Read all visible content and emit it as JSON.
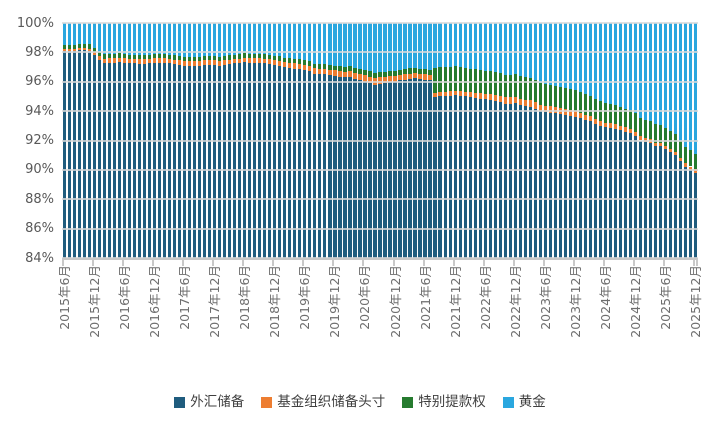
{
  "chart_data": {
    "type": "bar",
    "subtype": "stacked-100-percent-columns",
    "title": "",
    "x_axis": {
      "frequency": "monthly",
      "start": "2015-06",
      "end": "2025-12",
      "n_bars": 127,
      "tick_labels": [
        "2015年6月",
        "2015年12月",
        "2016年6月",
        "2016年12月",
        "2017年6月",
        "2017年12月",
        "2018年6月",
        "2018年12月",
        "2019年6月",
        "2019年12月",
        "2020年6月",
        "2020年12月",
        "2021年6月",
        "2021年12月",
        "2022年6月",
        "2022年12月",
        "2023年6月",
        "2023年12月",
        "2024年6月",
        "2024年12月",
        "2025年6月",
        "2025年12月"
      ],
      "tick_every_n_bars": 6
    },
    "y_axis": {
      "tick_labels": [
        "100%",
        "98%",
        "96%",
        "94%",
        "92%",
        "90%",
        "88%",
        "86%",
        "84%"
      ],
      "ylim": [
        84,
        100
      ],
      "unit": "%"
    },
    "grid": true,
    "legend_position": "bottom",
    "series": [
      {
        "name": "外汇储备",
        "color": "#1F5C7E",
        "values": [
          98.1,
          98.1,
          98.1,
          98.15,
          98.15,
          98.1,
          97.8,
          97.5,
          97.3,
          97.3,
          97.3,
          97.35,
          97.3,
          97.25,
          97.25,
          97.2,
          97.2,
          97.25,
          97.3,
          97.3,
          97.3,
          97.25,
          97.2,
          97.15,
          97.1,
          97.1,
          97.1,
          97.1,
          97.15,
          97.15,
          97.15,
          97.1,
          97.15,
          97.2,
          97.25,
          97.3,
          97.35,
          97.3,
          97.3,
          97.3,
          97.25,
          97.2,
          97.15,
          97.1,
          97.0,
          96.95,
          96.9,
          96.85,
          96.8,
          96.7,
          96.55,
          96.5,
          96.5,
          96.45,
          96.4,
          96.35,
          96.3,
          96.3,
          96.2,
          96.1,
          96.0,
          95.9,
          95.8,
          95.85,
          95.9,
          95.95,
          96.0,
          96.1,
          96.15,
          96.2,
          96.25,
          96.2,
          96.15,
          96.1,
          94.95,
          95.0,
          95.0,
          95.05,
          95.1,
          95.05,
          95.0,
          94.95,
          94.9,
          94.85,
          94.8,
          94.75,
          94.7,
          94.6,
          94.5,
          94.5,
          94.55,
          94.4,
          94.35,
          94.3,
          94.15,
          94.0,
          93.95,
          93.9,
          93.85,
          93.8,
          93.75,
          93.7,
          93.6,
          93.5,
          93.4,
          93.3,
          93.1,
          93.0,
          92.9,
          92.85,
          92.8,
          92.7,
          92.6,
          92.5,
          92.3,
          92.0,
          91.9,
          91.8,
          91.6,
          91.6,
          91.4,
          91.2,
          91.0,
          90.6,
          90.2,
          90.0,
          89.8
        ]
      },
      {
        "name": "基金组织储备头寸",
        "color": "#ED7D31",
        "values": [
          0.12,
          0.12,
          0.12,
          0.12,
          0.12,
          0.15,
          0.2,
          0.25,
          0.28,
          0.3,
          0.3,
          0.3,
          0.3,
          0.3,
          0.3,
          0.32,
          0.32,
          0.3,
          0.3,
          0.3,
          0.3,
          0.3,
          0.3,
          0.3,
          0.3,
          0.3,
          0.3,
          0.3,
          0.3,
          0.3,
          0.3,
          0.3,
          0.3,
          0.3,
          0.28,
          0.28,
          0.28,
          0.3,
          0.3,
          0.3,
          0.32,
          0.32,
          0.32,
          0.32,
          0.33,
          0.34,
          0.35,
          0.35,
          0.35,
          0.36,
          0.37,
          0.38,
          0.38,
          0.38,
          0.38,
          0.38,
          0.38,
          0.4,
          0.42,
          0.44,
          0.45,
          0.45,
          0.45,
          0.44,
          0.43,
          0.42,
          0.4,
          0.38,
          0.37,
          0.36,
          0.35,
          0.35,
          0.35,
          0.35,
          0.3,
          0.3,
          0.3,
          0.3,
          0.3,
          0.3,
          0.3,
          0.32,
          0.34,
          0.36,
          0.38,
          0.4,
          0.42,
          0.44,
          0.45,
          0.45,
          0.44,
          0.44,
          0.44,
          0.44,
          0.44,
          0.43,
          0.43,
          0.42,
          0.42,
          0.41,
          0.4,
          0.4,
          0.4,
          0.38,
          0.36,
          0.35,
          0.34,
          0.33,
          0.32,
          0.31,
          0.3,
          0.3,
          0.29,
          0.28,
          0.28,
          0.28,
          0.27,
          0.27,
          0.26,
          0.26,
          0.25,
          0.25,
          0.25,
          0.24,
          0.24,
          0.23,
          0.23
        ]
      },
      {
        "name": "特别提款权",
        "color": "#267B2F",
        "values": [
          0.3,
          0.3,
          0.3,
          0.3,
          0.3,
          0.3,
          0.3,
          0.3,
          0.3,
          0.3,
          0.3,
          0.3,
          0.3,
          0.3,
          0.3,
          0.3,
          0.3,
          0.3,
          0.3,
          0.3,
          0.3,
          0.3,
          0.3,
          0.3,
          0.3,
          0.3,
          0.3,
          0.3,
          0.3,
          0.3,
          0.3,
          0.3,
          0.3,
          0.3,
          0.3,
          0.3,
          0.3,
          0.3,
          0.3,
          0.3,
          0.3,
          0.3,
          0.3,
          0.32,
          0.32,
          0.32,
          0.32,
          0.32,
          0.32,
          0.32,
          0.32,
          0.32,
          0.32,
          0.32,
          0.32,
          0.35,
          0.35,
          0.35,
          0.35,
          0.35,
          0.35,
          0.35,
          0.35,
          0.35,
          0.35,
          0.35,
          0.35,
          0.35,
          0.35,
          0.35,
          0.35,
          0.35,
          0.35,
          0.35,
          1.7,
          1.7,
          1.7,
          1.68,
          1.66,
          1.65,
          1.64,
          1.62,
          1.6,
          1.6,
          1.58,
          1.56,
          1.55,
          1.55,
          1.54,
          1.54,
          1.55,
          1.55,
          1.54,
          1.53,
          1.52,
          1.5,
          1.5,
          1.48,
          1.47,
          1.46,
          1.45,
          1.44,
          1.43,
          1.42,
          1.4,
          1.4,
          1.38,
          1.36,
          1.35,
          1.34,
          1.32,
          1.3,
          1.28,
          1.27,
          1.26,
          1.26,
          1.25,
          1.24,
          1.23,
          1.22,
          1.2,
          1.18,
          1.16,
          1.14,
          1.12,
          1.1,
          1.08
        ]
      },
      {
        "name": "黄金",
        "color": "#2AA7DF",
        "values": [
          1.48,
          1.48,
          1.48,
          1.43,
          1.43,
          1.45,
          1.7,
          1.95,
          2.12,
          2.1,
          2.1,
          2.05,
          2.1,
          2.15,
          2.15,
          2.18,
          2.18,
          2.15,
          2.1,
          2.1,
          2.1,
          2.15,
          2.2,
          2.25,
          2.3,
          2.3,
          2.3,
          2.3,
          2.25,
          2.25,
          2.25,
          2.3,
          2.25,
          2.2,
          2.17,
          2.12,
          2.07,
          2.1,
          2.1,
          2.1,
          2.13,
          2.18,
          2.23,
          2.26,
          2.35,
          2.39,
          2.43,
          2.48,
          2.53,
          2.62,
          2.76,
          2.8,
          2.8,
          2.85,
          2.9,
          2.92,
          2.97,
          2.95,
          3.03,
          3.11,
          3.2,
          3.3,
          3.4,
          3.36,
          3.32,
          3.28,
          3.25,
          3.17,
          3.13,
          3.09,
          3.05,
          3.1,
          3.15,
          3.2,
          3.05,
          3.0,
          3.0,
          2.97,
          2.94,
          3.0,
          3.06,
          3.11,
          3.16,
          3.19,
          3.24,
          3.29,
          3.33,
          3.41,
          3.51,
          3.51,
          3.46,
          3.61,
          3.67,
          3.73,
          3.89,
          4.07,
          4.12,
          4.2,
          4.26,
          4.33,
          4.4,
          4.46,
          4.57,
          4.7,
          4.84,
          4.95,
          5.18,
          5.31,
          5.43,
          5.5,
          5.58,
          5.7,
          5.83,
          5.95,
          6.16,
          6.46,
          6.58,
          6.69,
          6.91,
          6.92,
          7.15,
          7.37,
          7.59,
          8.02,
          8.44,
          8.67,
          8.89
        ]
      }
    ],
    "legend": [
      {
        "label": "外汇储备",
        "color": "#1F5C7E"
      },
      {
        "label": "基金组织储备头寸",
        "color": "#ED7D31"
      },
      {
        "label": "特别提款权",
        "color": "#267B2F"
      },
      {
        "label": "黄金",
        "color": "#2AA7DF"
      }
    ]
  },
  "colors": {
    "background": "#FFFFFF",
    "gridline": "rgba(217,217,217,0.8)",
    "axis_line": "#C9C9C9",
    "tick_mark": "#C9C9C9",
    "y_label_text": "#595959",
    "x_label_text": "#6E6E6E",
    "legend_text": "#3F3F3F"
  }
}
